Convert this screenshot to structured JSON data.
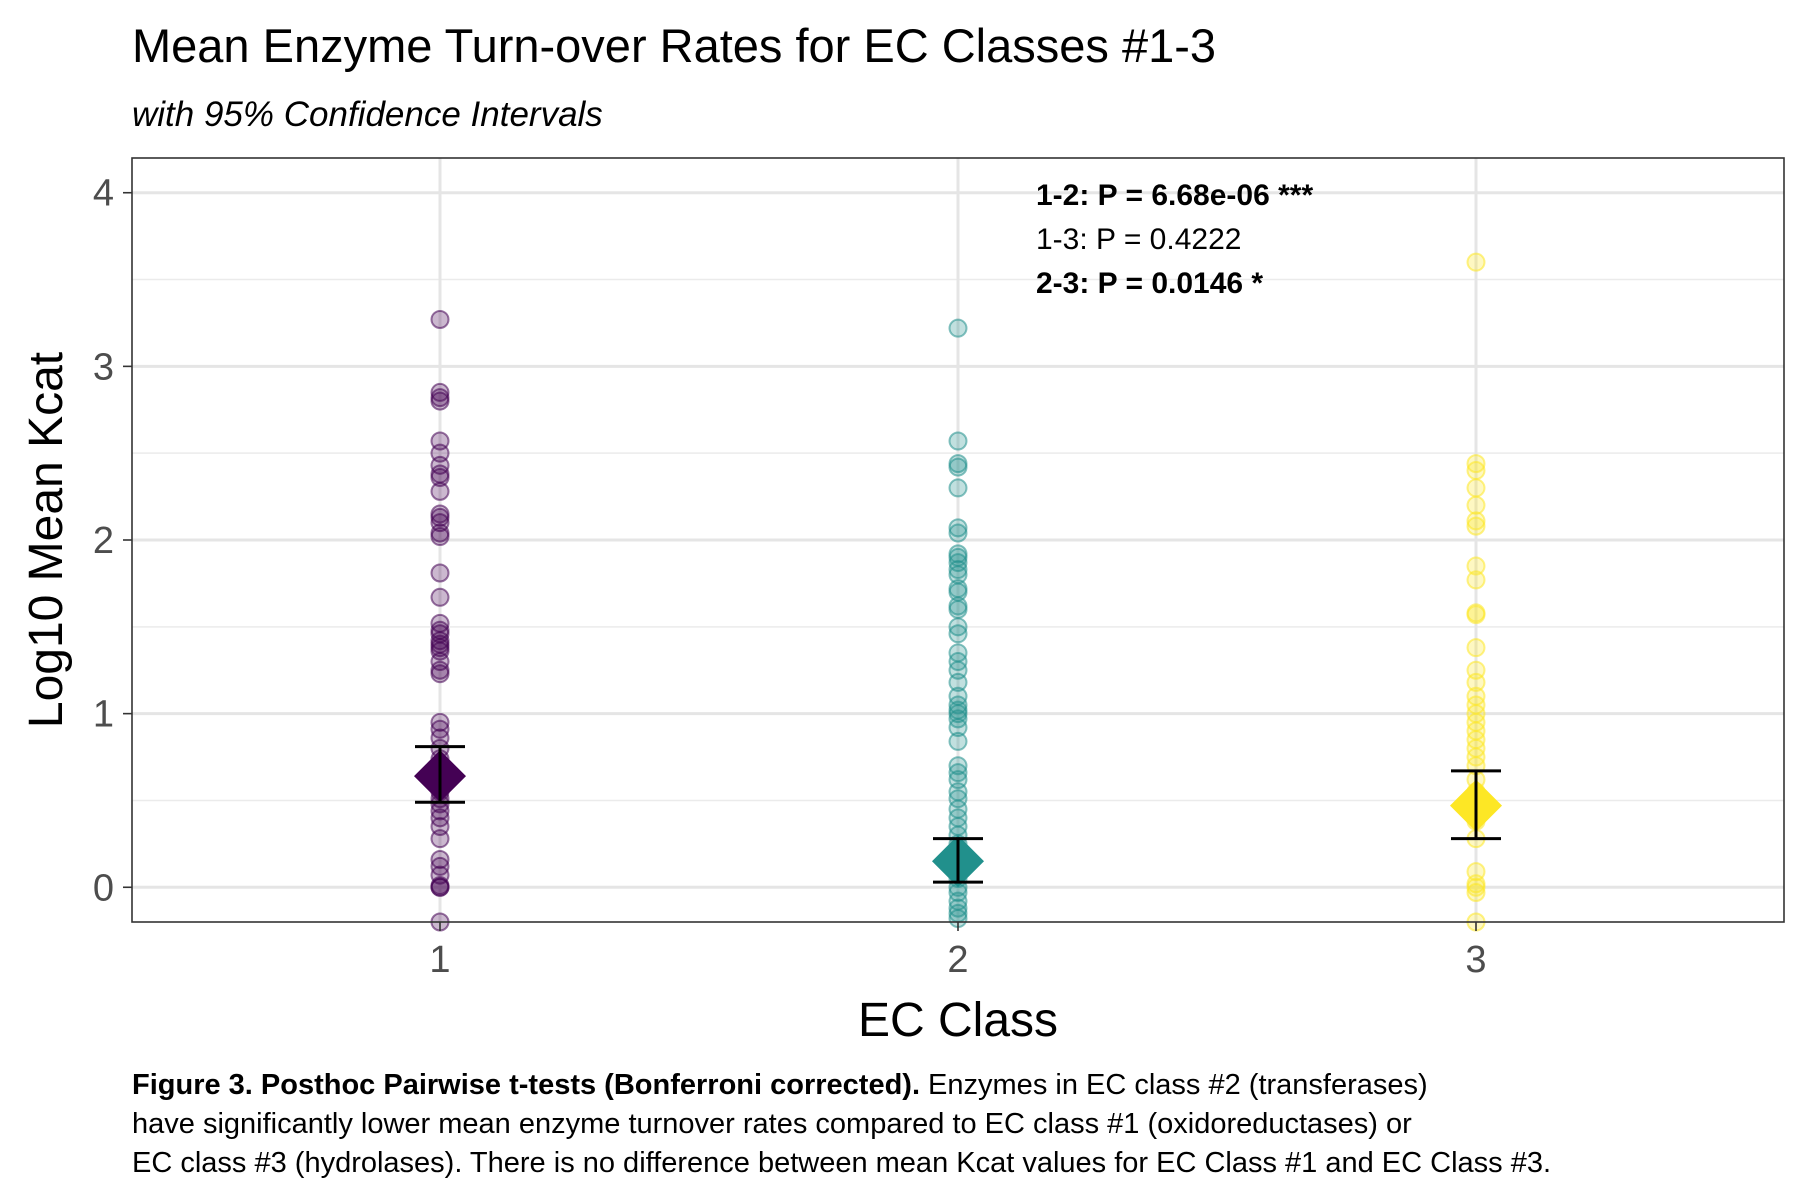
{
  "chart_data": {
    "type": "scatter",
    "title": "Mean Enzyme Turn-over Rates for EC Classes #1-3",
    "subtitle": "with 95% Confidence Intervals",
    "xlabel": "EC Class",
    "ylabel": "Log10 Mean Kcat",
    "categories": [
      "1",
      "2",
      "3"
    ],
    "ylim": [
      -0.2,
      4.2
    ],
    "yticks": [
      0,
      1,
      2,
      3,
      4
    ],
    "grid": true,
    "series": [
      {
        "category": "1",
        "color": "#440154",
        "points": [
          3.27,
          2.85,
          2.82,
          2.8,
          2.57,
          2.5,
          2.43,
          2.38,
          2.36,
          2.28,
          2.15,
          2.13,
          2.1,
          2.04,
          2.02,
          1.81,
          1.67,
          1.52,
          1.48,
          1.46,
          1.42,
          1.4,
          1.38,
          1.36,
          1.3,
          1.25,
          1.23,
          0.95,
          0.91,
          0.86,
          0.8,
          0.74,
          0.7,
          0.66,
          0.62,
          0.58,
          0.55,
          0.51,
          0.48,
          0.44,
          0.4,
          0.35,
          0.28,
          0.16,
          0.12,
          0.07,
          0.01,
          0.0,
          0.0,
          -0.2
        ],
        "mean": 0.64,
        "ci": [
          0.49,
          0.81
        ]
      },
      {
        "category": "2",
        "color": "#21908C",
        "points": [
          3.22,
          2.57,
          2.44,
          2.42,
          2.3,
          2.07,
          2.04,
          1.92,
          1.9,
          1.87,
          1.83,
          1.8,
          1.72,
          1.7,
          1.62,
          1.6,
          1.5,
          1.46,
          1.35,
          1.3,
          1.25,
          1.18,
          1.1,
          1.05,
          1.02,
          1.0,
          0.97,
          0.92,
          0.84,
          0.7,
          0.66,
          0.62,
          0.55,
          0.51,
          0.45,
          0.4,
          0.35,
          0.3,
          0.25,
          0.2,
          0.15,
          0.1,
          0.05,
          0.0,
          -0.03,
          -0.08,
          -0.12,
          -0.15,
          -0.18
        ],
        "mean": 0.15,
        "ci": [
          0.03,
          0.28
        ]
      },
      {
        "category": "3",
        "color": "#FDE725",
        "points": [
          3.6,
          2.44,
          2.4,
          2.3,
          2.2,
          2.11,
          2.08,
          1.85,
          1.77,
          1.58,
          1.57,
          1.38,
          1.25,
          1.18,
          1.1,
          1.05,
          1.0,
          0.95,
          0.9,
          0.85,
          0.8,
          0.75,
          0.7,
          0.62,
          0.55,
          0.45,
          0.38,
          0.28,
          0.09,
          0.02,
          0.0,
          -0.03,
          -0.2
        ],
        "mean": 0.47,
        "ci": [
          0.28,
          0.67
        ]
      }
    ],
    "annotations": [
      {
        "text": "1-2: P = 6.68e-06 ***",
        "bold": true
      },
      {
        "text": "1-3: P = 0.4222",
        "bold": false
      },
      {
        "text": "2-3: P = 0.0146 *",
        "bold": true
      }
    ]
  },
  "caption": {
    "bold": "Figure 3. Posthoc Pairwise t-tests (Bonferroni corrected).",
    "line1": " Enzymes in EC class #2 (transferases)",
    "line2": "have significantly lower mean enzyme turnover rates compared to EC class #1 (oxidoreductases) or",
    "line3": "EC class #3 (hydrolases). There is no difference between mean Kcat values for EC Class #1 and EC Class #3."
  }
}
